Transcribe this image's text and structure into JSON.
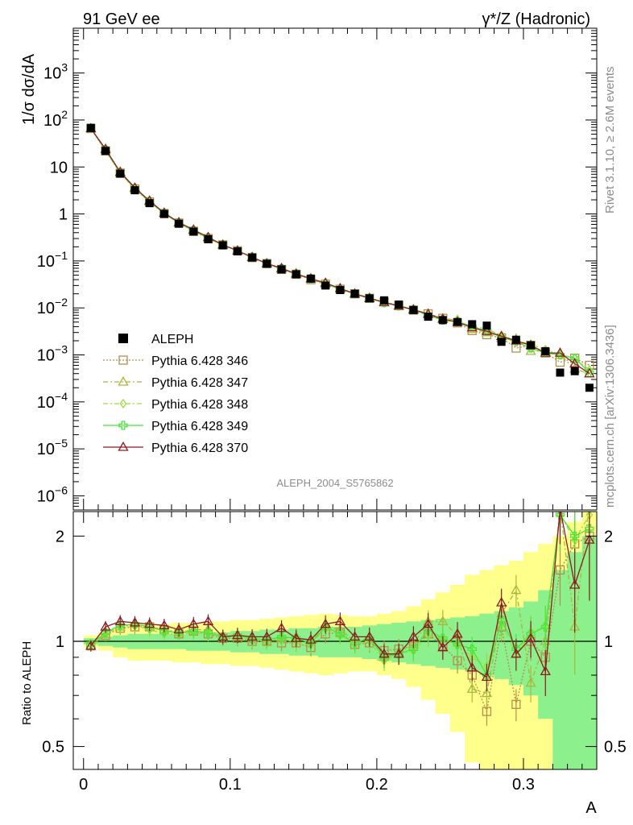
{
  "header": {
    "left_title": "91 GeV ee",
    "right_title": "γ*/Z (Hadronic)"
  },
  "side_text": {
    "rivet": "Rivet 3.1.10, ≥ 2.6M events",
    "mcplots": "mcplots.cern.ch [arXiv:1306.3436]"
  },
  "chart_data": [
    {
      "type": "line",
      "panel": "main",
      "ylabel": "1/σ  dσ/dA",
      "yscale": "log",
      "ylim": [
        5e-07,
        9000
      ],
      "xlim": [
        -0.007,
        0.35
      ],
      "analysis_label": "ALEPH_2004_S5765862",
      "y_tick_labels": [
        "10^-6",
        "10^-5",
        "10^-4",
        "10^-3",
        "10^-2",
        "10^-1",
        "1",
        "10",
        "10^2",
        "10^3"
      ],
      "x": [
        0.005,
        0.015,
        0.025,
        0.035,
        0.045,
        0.055,
        0.065,
        0.075,
        0.085,
        0.095,
        0.105,
        0.115,
        0.125,
        0.135,
        0.145,
        0.155,
        0.165,
        0.175,
        0.185,
        0.195,
        0.205,
        0.215,
        0.225,
        0.235,
        0.245,
        0.255,
        0.265,
        0.275,
        0.285,
        0.295,
        0.305,
        0.315,
        0.325,
        0.335,
        0.345
      ],
      "series": [
        {
          "name": "ALEPH",
          "color": "#000000",
          "marker": "square-filled",
          "values": [
            68,
            22,
            7.2,
            3.2,
            1.7,
            1.0,
            0.62,
            0.42,
            0.29,
            0.215,
            0.16,
            0.118,
            0.087,
            0.066,
            0.052,
            0.042,
            0.03,
            0.024,
            0.02,
            0.016,
            0.0145,
            0.0118,
            0.009,
            0.0065,
            0.0055,
            0.005,
            0.0045,
            0.0042,
            0.0019,
            0.0021,
            0.0016,
            0.0012,
            0.00042,
            0.00045,
            0.0002
          ]
        },
        {
          "name": "Pythia 6.428 346",
          "color": "#b88c4a",
          "marker": "square-open",
          "dash": "2,2",
          "values": [
            66,
            22,
            7.4,
            3.4,
            1.8,
            1.02,
            0.64,
            0.43,
            0.3,
            0.22,
            0.165,
            0.118,
            0.088,
            0.066,
            0.052,
            0.04,
            0.032,
            0.025,
            0.02,
            0.016,
            0.0135,
            0.0112,
            0.009,
            0.0075,
            0.006,
            0.0048,
            0.0033,
            0.0027,
            0.0023,
            0.0014,
            0.0016,
            0.0011,
            0.0007,
            0.00085,
            0.0006
          ]
        },
        {
          "name": "Pythia 6.428 347",
          "color": "#a8b83c",
          "marker": "triangle-open",
          "dash": "6,3,2,3",
          "values": [
            66,
            22.5,
            7.5,
            3.5,
            1.85,
            1.05,
            0.65,
            0.45,
            0.31,
            0.22,
            0.165,
            0.12,
            0.088,
            0.068,
            0.054,
            0.042,
            0.033,
            0.026,
            0.02,
            0.0165,
            0.013,
            0.011,
            0.009,
            0.0075,
            0.006,
            0.0055,
            0.0035,
            0.003,
            0.0023,
            0.0022,
            0.0012,
            0.0012,
            0.001,
            0.0005,
            0.0004
          ]
        },
        {
          "name": "Pythia 6.428 348",
          "color": "#9cdc3c",
          "marker": "diamond-open",
          "dash": "6,3,2,3",
          "values": [
            67,
            22.5,
            7.5,
            3.5,
            1.82,
            1.03,
            0.64,
            0.44,
            0.3,
            0.22,
            0.165,
            0.12,
            0.088,
            0.068,
            0.052,
            0.041,
            0.033,
            0.025,
            0.02,
            0.016,
            0.013,
            0.011,
            0.009,
            0.0068,
            0.0055,
            0.005,
            0.004,
            0.0036,
            0.0026,
            0.002,
            0.0017,
            0.0013,
            0.001,
            0.00085,
            0.00048
          ]
        },
        {
          "name": "Pythia 6.428 349",
          "color": "#4ce43c",
          "marker": "plus-open",
          "dash": "",
          "values": [
            67,
            23,
            7.6,
            3.5,
            1.85,
            1.03,
            0.64,
            0.44,
            0.31,
            0.22,
            0.165,
            0.12,
            0.088,
            0.068,
            0.053,
            0.042,
            0.033,
            0.025,
            0.02,
            0.016,
            0.013,
            0.011,
            0.0092,
            0.007,
            0.0055,
            0.0052,
            0.004,
            0.0032,
            0.0024,
            0.0019,
            0.0014,
            0.0011,
            0.001,
            0.00085,
            0.00042
          ]
        },
        {
          "name": "Pythia 6.428 370",
          "color": "#8c1c24",
          "marker": "triangle-open",
          "dash": "",
          "values": [
            66,
            24,
            7.8,
            3.6,
            1.9,
            1.05,
            0.66,
            0.46,
            0.32,
            0.22,
            0.165,
            0.12,
            0.088,
            0.07,
            0.053,
            0.042,
            0.034,
            0.026,
            0.02,
            0.016,
            0.0132,
            0.011,
            0.0092,
            0.0074,
            0.0058,
            0.005,
            0.0038,
            0.0032,
            0.0025,
            0.002,
            0.0016,
            0.0011,
            0.0011,
            0.00065,
            0.0004
          ]
        }
      ]
    },
    {
      "type": "line",
      "panel": "ratio",
      "ylabel": "Ratio to ALEPH",
      "xlabel": "A",
      "ylim": [
        0.43,
        2.35
      ],
      "y_tick_labels": [
        "0.5",
        "1",
        "2"
      ],
      "x_tick_labels": [
        "0",
        "0.1",
        "0.2",
        "0.3"
      ],
      "bands": {
        "outer_color": "#ffff8c",
        "inner_color": "#8cf08c",
        "inner_half_width": [
          0.02,
          0.03,
          0.04,
          0.05,
          0.05,
          0.05,
          0.05,
          0.06,
          0.06,
          0.06,
          0.07,
          0.07,
          0.08,
          0.08,
          0.09,
          0.09,
          0.1,
          0.1,
          0.1,
          0.11,
          0.12,
          0.13,
          0.14,
          0.15,
          0.16,
          0.17,
          0.18,
          0.2,
          0.22,
          0.25,
          0.3,
          0.4,
          0.6,
          0.8,
          1.0
        ],
        "outer_half_width": [
          0.04,
          0.06,
          0.1,
          0.12,
          0.12,
          0.12,
          0.13,
          0.13,
          0.14,
          0.14,
          0.15,
          0.15,
          0.16,
          0.17,
          0.18,
          0.19,
          0.2,
          0.19,
          0.18,
          0.18,
          0.2,
          0.22,
          0.26,
          0.32,
          0.38,
          0.45,
          0.55,
          0.6,
          0.65,
          0.7,
          0.8,
          0.9,
          1.0,
          1.2,
          1.4
        ]
      },
      "series": [
        {
          "name": "Pythia 6.428 346",
          "color": "#b88c4a",
          "marker": "square-open",
          "dash": "2,2",
          "values": [
            0.97,
            1.04,
            1.09,
            1.1,
            1.1,
            1.08,
            1.05,
            1.07,
            1.05,
            1.02,
            1.02,
            1.0,
            1.0,
            0.99,
            0.99,
            0.96,
            1.05,
            1.06,
            0.98,
            0.99,
            0.94,
            0.95,
            0.97,
            1.05,
            0.97,
            0.88,
            0.8,
            0.63,
            1.1,
            0.66,
            1.0,
            0.9,
            1.6,
            1.9,
            2.0
          ]
        },
        {
          "name": "Pythia 6.428 347",
          "color": "#a8b83c",
          "marker": "triangle-open",
          "dash": "6,3,2,3",
          "values": [
            0.97,
            1.05,
            1.1,
            1.12,
            1.1,
            1.08,
            1.06,
            1.08,
            1.08,
            1.03,
            1.03,
            1.01,
            1.0,
            1.02,
            1.03,
            1.0,
            1.1,
            1.08,
            1.0,
            1.02,
            0.9,
            0.93,
            0.98,
            1.14,
            1.14,
            1.04,
            0.73,
            0.71,
            1.2,
            1.4,
            0.76,
            1.0,
            2.4,
            1.1,
            2.5
          ]
        },
        {
          "name": "Pythia 6.428 348",
          "color": "#9cdc3c",
          "marker": "diamond-open",
          "dash": "6,3,2,3",
          "values": [
            0.98,
            1.05,
            1.1,
            1.11,
            1.08,
            1.05,
            1.05,
            1.06,
            1.05,
            1.03,
            1.03,
            1.01,
            1.0,
            1.02,
            0.99,
            0.98,
            1.09,
            1.04,
            0.98,
            1.0,
            0.88,
            0.92,
            0.94,
            1.04,
            1.01,
            0.98,
            0.9,
            0.85,
            1.12,
            0.92,
            1.06,
            1.1,
            2.3,
            1.95,
            2.3
          ]
        },
        {
          "name": "Pythia 6.428 349",
          "color": "#4ce43c",
          "marker": "plus-open",
          "dash": "",
          "values": [
            0.98,
            1.06,
            1.11,
            1.12,
            1.1,
            1.07,
            1.06,
            1.07,
            1.06,
            1.03,
            1.04,
            1.02,
            1.01,
            1.03,
            1.02,
            0.99,
            1.1,
            1.05,
            0.99,
            1.02,
            0.9,
            0.92,
            0.95,
            1.08,
            1.02,
            0.98,
            0.95,
            0.8,
            1.15,
            0.95,
            1.05,
            1.1,
            2.3,
            2.0,
            2.1
          ]
        },
        {
          "name": "Pythia 6.428 370",
          "color": "#8c1c24",
          "marker": "triangle-open",
          "dash": "",
          "values": [
            0.97,
            1.1,
            1.14,
            1.13,
            1.12,
            1.11,
            1.08,
            1.12,
            1.14,
            1.03,
            1.04,
            1.03,
            1.03,
            1.09,
            1.02,
            1.01,
            1.12,
            1.14,
            1.03,
            1.03,
            0.92,
            0.92,
            1.03,
            1.12,
            0.96,
            1.05,
            0.84,
            0.79,
            1.29,
            0.92,
            1.02,
            0.82,
            2.4,
            1.45,
            1.95
          ]
        }
      ]
    }
  ]
}
